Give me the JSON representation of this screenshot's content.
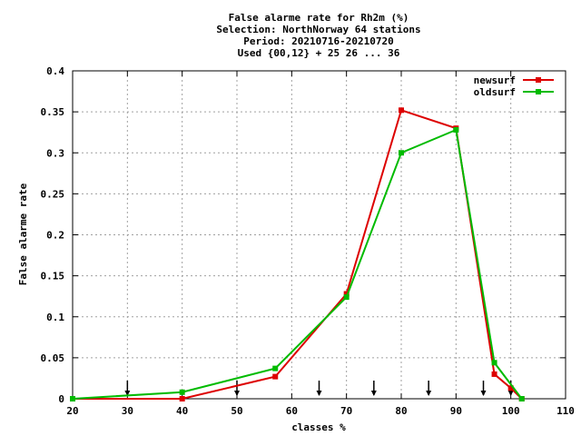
{
  "chart_data": {
    "type": "line",
    "title_lines": [
      "False alarme rate  for Rh2m (%)",
      "Selection: NorthNorway     64 stations",
      "Period: 20210716-20210720",
      "Used {00,12} + 25 26 ... 36"
    ],
    "xlabel": "classes %",
    "ylabel": "False alarme rate",
    "xlim": [
      20,
      110
    ],
    "ylim": [
      0,
      0.4
    ],
    "x_ticks": [
      20,
      30,
      40,
      50,
      60,
      70,
      80,
      90,
      100,
      110
    ],
    "x_tick_labels": [
      "20",
      "30",
      "40",
      "50",
      "60",
      "70",
      "80",
      "90",
      "100",
      "110"
    ],
    "y_ticks": [
      0,
      0.05,
      0.1,
      0.15,
      0.2,
      0.25,
      0.3,
      0.35,
      0.4
    ],
    "y_tick_labels": [
      "0",
      "0.05",
      "0.1",
      "0.15",
      "0.2",
      "0.25",
      "0.3",
      "0.35",
      "0.4"
    ],
    "grid": true,
    "legend_position": "top-right",
    "arrow_markers_x": [
      30,
      50,
      65,
      75,
      85,
      95,
      100
    ],
    "series": [
      {
        "name": "newsurf",
        "color": "#dd0000",
        "points": [
          [
            20,
            0.0
          ],
          [
            40,
            0.0
          ],
          [
            57,
            0.027
          ],
          [
            70,
            0.128
          ],
          [
            80,
            0.352
          ],
          [
            90,
            0.33
          ],
          [
            97,
            0.03
          ],
          [
            100,
            0.013
          ],
          [
            102,
            0.0
          ]
        ]
      },
      {
        "name": "oldsurf",
        "color": "#00bb00",
        "points": [
          [
            20,
            0.0
          ],
          [
            40,
            0.008
          ],
          [
            57,
            0.037
          ],
          [
            70,
            0.124
          ],
          [
            80,
            0.3
          ],
          [
            90,
            0.328
          ],
          [
            97,
            0.044
          ],
          [
            102,
            0.0
          ]
        ]
      }
    ]
  }
}
